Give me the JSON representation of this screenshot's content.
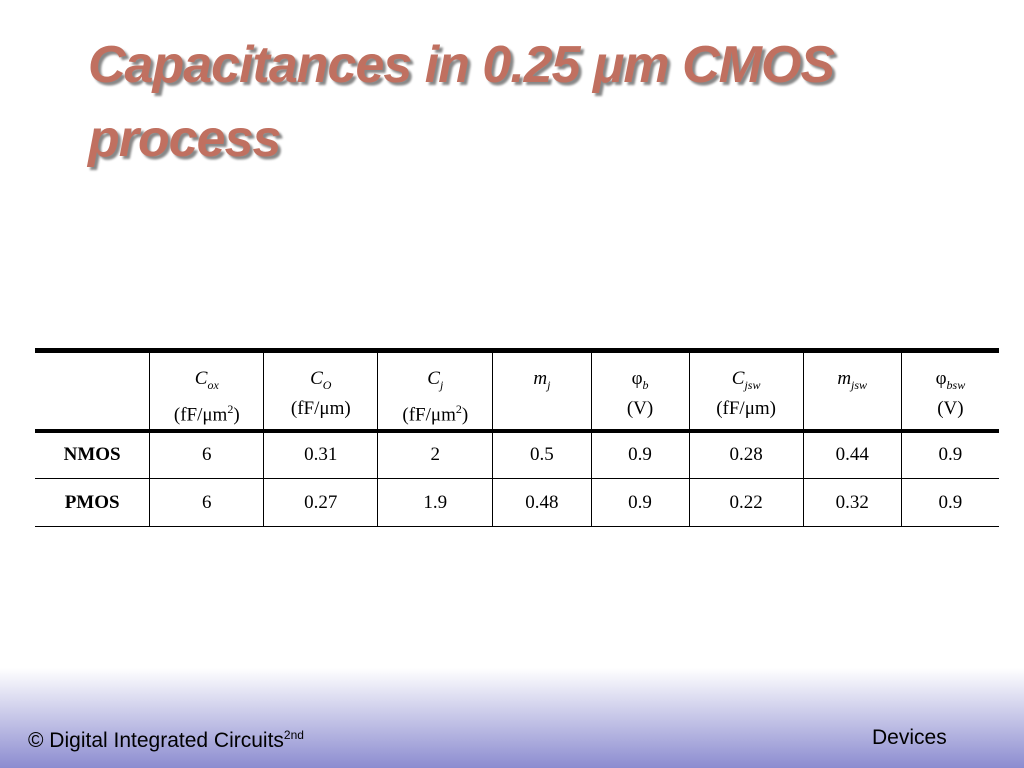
{
  "title": {
    "line1": "Capacitances in 0.25 μm CMOS",
    "line2": "process"
  },
  "table": {
    "header": [
      {
        "symbol": "C",
        "sub": "ox",
        "unit_start": "(fF/μm",
        "unit_sup": "2",
        "unit_end": ")"
      },
      {
        "symbol": "C",
        "sub": "O",
        "unit_start": "(fF/μm)"
      },
      {
        "symbol": "C",
        "sub": "j",
        "unit_start": "(fF/μm",
        "unit_sup": "2",
        "unit_end": ")"
      },
      {
        "symbol": "m",
        "sub": "j"
      },
      {
        "symbol": "φ",
        "sub": "b",
        "unit_start": "(V)"
      },
      {
        "symbol": "C",
        "sub": "jsw",
        "unit_start": "(fF/μm)"
      },
      {
        "symbol": "m",
        "sub": "jsw"
      },
      {
        "symbol": "φ",
        "sub": "bsw",
        "unit_start": "(V)"
      }
    ],
    "rows": [
      [
        "NMOS",
        6,
        0.31,
        2,
        0.5,
        0.9,
        0.28,
        0.44,
        0.9
      ],
      [
        "PMOS",
        6,
        0.27,
        1.9,
        0.48,
        0.9,
        0.22,
        0.32,
        0.9
      ]
    ]
  },
  "footer": {
    "left": "© Digital Integrated Circuits",
    "left_sup": "2nd",
    "right": "Devices"
  }
}
